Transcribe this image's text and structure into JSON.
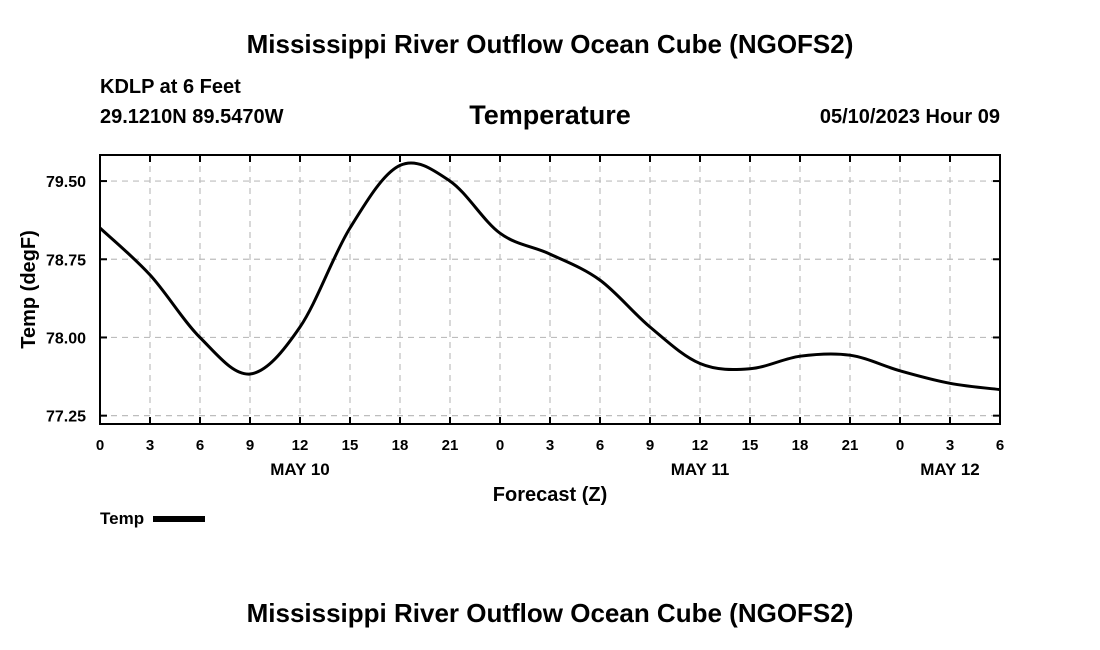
{
  "page": {
    "title_top": "Mississippi River Outflow Ocean Cube (NGOFS2)",
    "title_bottom": "Mississippi River Outflow Ocean Cube (NGOFS2)",
    "station": "KDLP at 6 Feet",
    "coords": "29.1210N  89.5470W",
    "variable": "Temperature",
    "datetime": "05/10/2023 Hour 09"
  },
  "legend": {
    "label": "Temp"
  },
  "chart_data": {
    "type": "line",
    "title": "Temperature",
    "xlabel": "Forecast (Z)",
    "ylabel": "Temp (degF)",
    "xlim": [
      0,
      54
    ],
    "ylim": [
      77.17,
      79.75
    ],
    "grid": true,
    "yticks": [
      77.25,
      78.0,
      78.75,
      79.5
    ],
    "ytick_labels": [
      "77.25",
      "78.00",
      "78.75",
      "79.50"
    ],
    "xticks": [
      0,
      3,
      6,
      9,
      12,
      15,
      18,
      21,
      24,
      27,
      30,
      33,
      36,
      39,
      42,
      45,
      48,
      51,
      54
    ],
    "xtick_labels": [
      "0",
      "3",
      "6",
      "9",
      "12",
      "15",
      "18",
      "21",
      "0",
      "3",
      "6",
      "9",
      "12",
      "15",
      "18",
      "21",
      "0",
      "3",
      "6"
    ],
    "date_labels": [
      {
        "x": 12,
        "text": "MAY 10"
      },
      {
        "x": 36,
        "text": "MAY 11"
      },
      {
        "x": 51,
        "text": "MAY 12"
      }
    ],
    "series": [
      {
        "name": "Temp",
        "color": "#000000",
        "x": [
          0,
          3,
          6,
          9,
          12,
          15,
          18,
          21,
          24,
          27,
          30,
          33,
          36,
          39,
          42,
          45,
          48,
          51,
          54
        ],
        "values": [
          79.05,
          78.6,
          78.0,
          77.65,
          78.1,
          79.05,
          79.65,
          79.5,
          79.0,
          78.8,
          78.55,
          78.1,
          77.75,
          77.7,
          77.82,
          77.83,
          77.68,
          77.56,
          77.5
        ]
      }
    ]
  }
}
